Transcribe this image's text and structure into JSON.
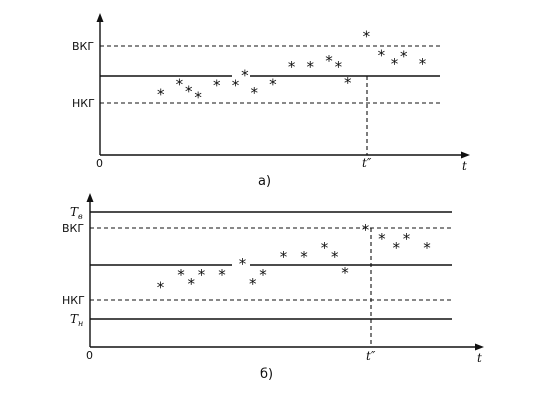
{
  "panel_a": {
    "caption": "а)",
    "y_labels": {
      "upper_control": "ВКГ",
      "lower_control": "НКГ"
    },
    "origin_label": "0",
    "x_axis_label": "t",
    "event_label": "t″",
    "points": [
      {
        "x": 1,
        "y": -0.6
      },
      {
        "x": 2,
        "y": -0.25
      },
      {
        "x": 2.5,
        "y": -0.5
      },
      {
        "x": 3,
        "y": -0.7
      },
      {
        "x": 4,
        "y": -0.3
      },
      {
        "x": 5,
        "y": -0.3
      },
      {
        "x": 5.5,
        "y": 0.05
      },
      {
        "x": 6,
        "y": -0.55
      },
      {
        "x": 7,
        "y": -0.25
      },
      {
        "x": 8,
        "y": 0.35
      },
      {
        "x": 9,
        "y": 0.35
      },
      {
        "x": 10,
        "y": 0.55
      },
      {
        "x": 10.5,
        "y": 0.35
      },
      {
        "x": 11,
        "y": -0.2
      },
      {
        "x": 12,
        "y": 1.4
      },
      {
        "x": 12.8,
        "y": 0.75
      },
      {
        "x": 13.5,
        "y": 0.45
      },
      {
        "x": 14,
        "y": 0.7
      },
      {
        "x": 15,
        "y": 0.45
      }
    ]
  },
  "panel_b": {
    "caption": "б)",
    "y_labels": {
      "upper_tolerance": "Тв",
      "upper_tolerance_main": "Т",
      "upper_tolerance_sub": "в",
      "upper_control": "ВКГ",
      "lower_control": "НКГ",
      "lower_tolerance": "Тн",
      "lower_tolerance_main": "Т",
      "lower_tolerance_sub": "н"
    },
    "origin_label": "0",
    "x_axis_label": "t",
    "event_label": "t″",
    "points": [
      {
        "x": 1,
        "y": -0.6
      },
      {
        "x": 2,
        "y": -0.25
      },
      {
        "x": 2.5,
        "y": -0.5
      },
      {
        "x": 3,
        "y": -0.25
      },
      {
        "x": 4,
        "y": -0.25
      },
      {
        "x": 5,
        "y": 0.05
      },
      {
        "x": 5.5,
        "y": -0.5
      },
      {
        "x": 6,
        "y": -0.25
      },
      {
        "x": 7,
        "y": 0.25
      },
      {
        "x": 8,
        "y": 0.25
      },
      {
        "x": 9,
        "y": 0.5
      },
      {
        "x": 9.5,
        "y": 0.25
      },
      {
        "x": 10,
        "y": -0.2
      },
      {
        "x": 11,
        "y": 1.0
      },
      {
        "x": 11.8,
        "y": 0.75
      },
      {
        "x": 12.5,
        "y": 0.5
      },
      {
        "x": 13,
        "y": 0.75
      },
      {
        "x": 14,
        "y": 0.5
      }
    ]
  },
  "marker_glyph": "*"
}
